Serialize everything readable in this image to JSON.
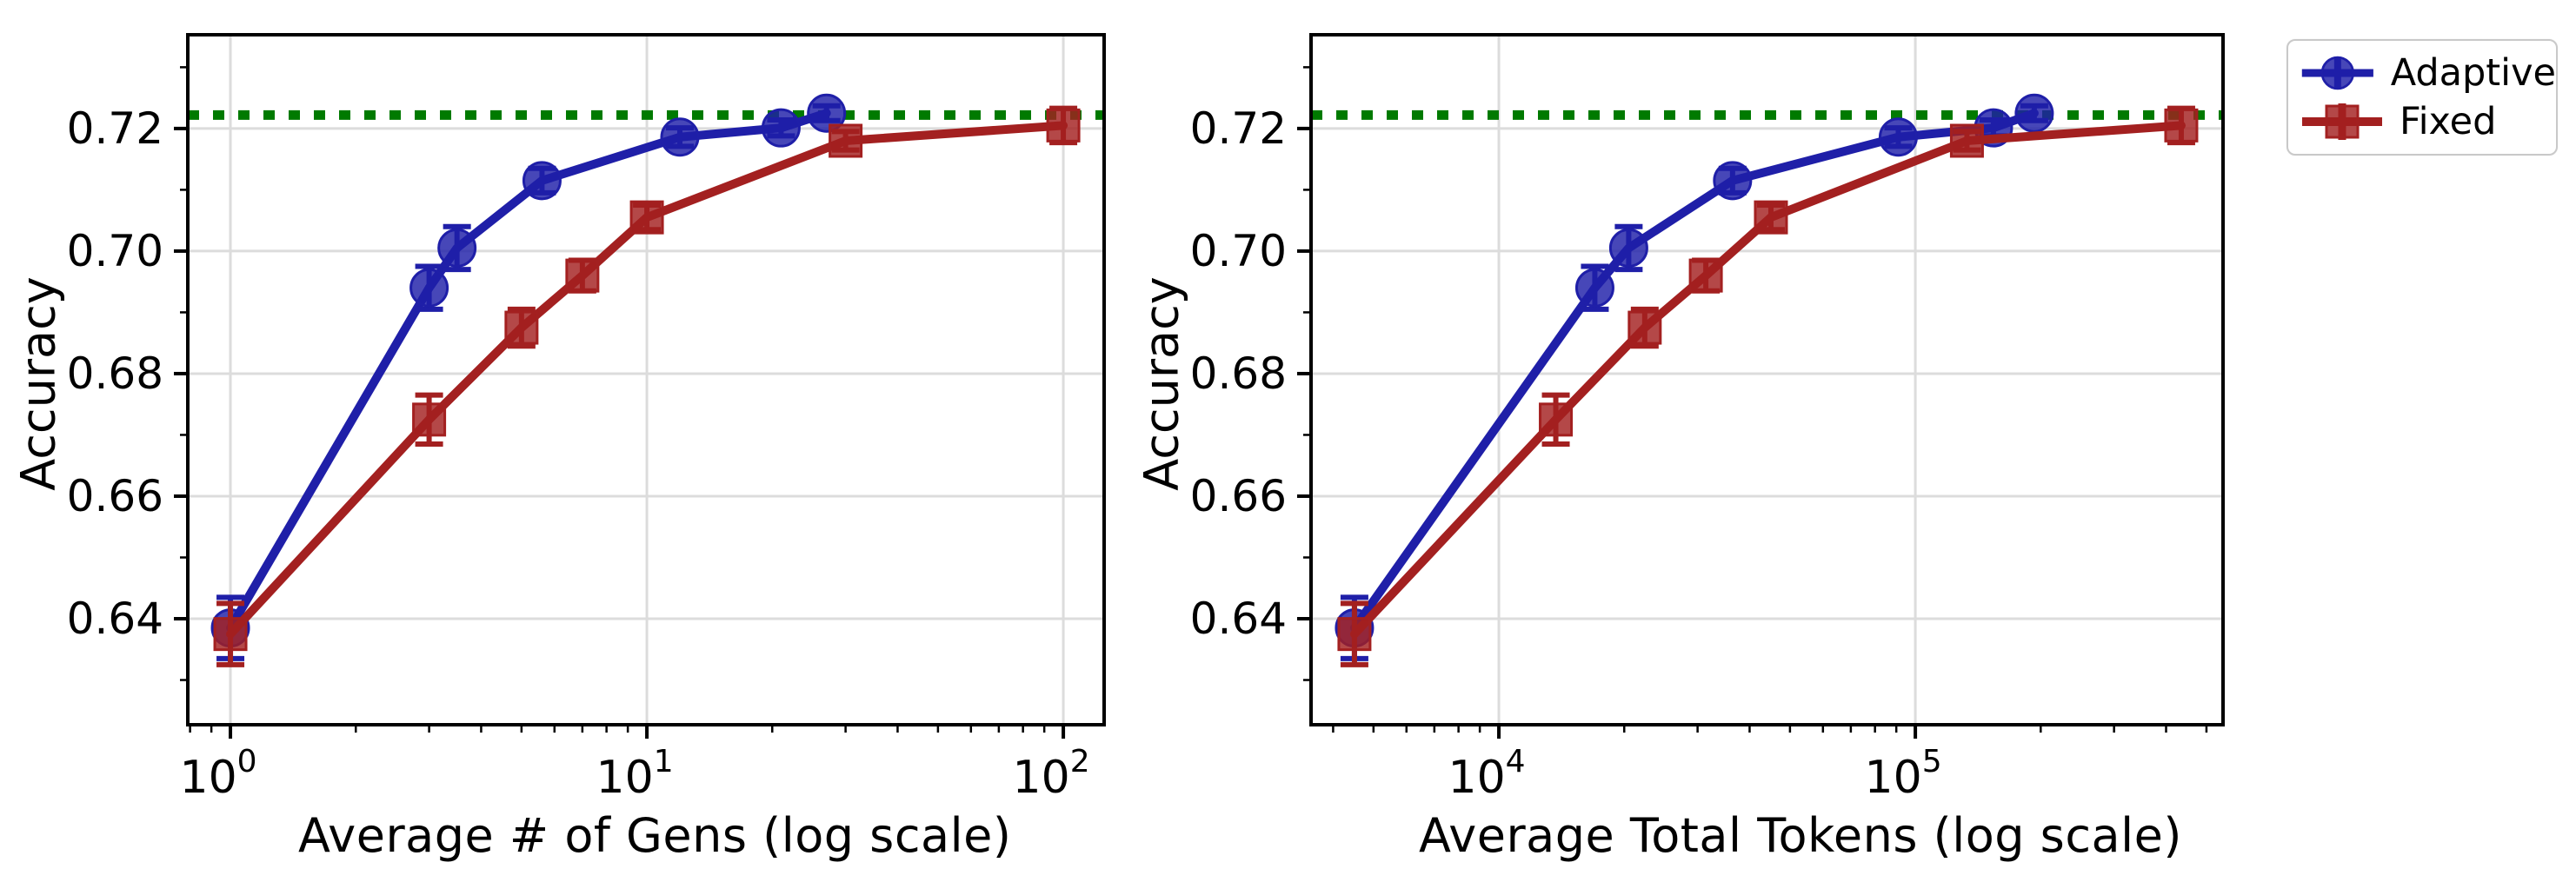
{
  "figure": {
    "background": "#ffffff",
    "accent_colors": {
      "adaptive": "#1f1fa8",
      "fixed": "#a32020",
      "baseline": "#007a00",
      "grid": "#dcdcdc",
      "spine": "#000000"
    }
  },
  "legend": {
    "items": [
      {
        "label": "Adaptive",
        "marker": "circle",
        "color": "#1f1fa8"
      },
      {
        "label": "Fixed",
        "marker": "square",
        "color": "#a32020"
      }
    ]
  },
  "chart_data": [
    {
      "type": "line",
      "title": "",
      "xlabel": "Average # of Gens (log scale)",
      "ylabel": "Accuracy",
      "x_scale": "log",
      "xlim": [
        0.79,
        125.3
      ],
      "ylim": [
        0.6227,
        0.7353
      ],
      "grid": true,
      "x_ticks": [
        {
          "value": 1,
          "base": "10",
          "exp": "0"
        },
        {
          "value": 10,
          "base": "10",
          "exp": "1"
        },
        {
          "value": 100,
          "base": "10",
          "exp": "2"
        }
      ],
      "y_ticks": [
        {
          "value": 0.64,
          "label": "0.64"
        },
        {
          "value": 0.66,
          "label": "0.66"
        },
        {
          "value": 0.68,
          "label": "0.68"
        },
        {
          "value": 0.7,
          "label": "0.70"
        },
        {
          "value": 0.72,
          "label": "0.72"
        }
      ],
      "baseline": {
        "value": 0.7222,
        "style": "dotted",
        "color": "#007a00"
      },
      "series": [
        {
          "name": "Adaptive",
          "marker": "circle",
          "color": "#1f1fa8",
          "x": [
            1,
            3,
            3.5,
            5.6,
            12,
            21,
            27
          ],
          "y": [
            0.6385,
            0.694,
            0.7005,
            0.7115,
            0.7186,
            0.7201,
            0.7225
          ],
          "yerr": [
            0.005,
            0.0035,
            0.0035,
            0.002,
            0.0015,
            0.0013,
            0.0012
          ]
        },
        {
          "name": "Fixed",
          "marker": "square",
          "color": "#a32020",
          "x": [
            1,
            3,
            5,
            7,
            10,
            30,
            100
          ],
          "y": [
            0.6375,
            0.6725,
            0.6875,
            0.696,
            0.7055,
            0.718,
            0.7205
          ],
          "yerr": [
            0.005,
            0.004,
            0.003,
            0.0025,
            0.002,
            0.0015,
            0.0028
          ]
        }
      ]
    },
    {
      "type": "line",
      "title": "",
      "xlabel": "Average Total Tokens (log scale)",
      "ylabel": "Accuracy",
      "x_scale": "log",
      "xlim": [
        3540,
        548000
      ],
      "ylim": [
        0.6227,
        0.7353
      ],
      "grid": true,
      "x_ticks": [
        {
          "value": 10000,
          "base": "10",
          "exp": "4"
        },
        {
          "value": 100000,
          "base": "10",
          "exp": "5"
        }
      ],
      "y_ticks": [
        {
          "value": 0.64,
          "label": "0.64"
        },
        {
          "value": 0.66,
          "label": "0.66"
        },
        {
          "value": 0.68,
          "label": "0.68"
        },
        {
          "value": 0.7,
          "label": "0.70"
        },
        {
          "value": 0.72,
          "label": "0.72"
        }
      ],
      "baseline": {
        "value": 0.7222,
        "style": "dotted",
        "color": "#007a00"
      },
      "series": [
        {
          "name": "Adaptive",
          "marker": "circle",
          "color": "#1f1fa8",
          "x": [
            4500,
            17000,
            20500,
            36400,
            91000,
            154000,
            193000
          ],
          "y": [
            0.6385,
            0.694,
            0.7005,
            0.7115,
            0.7186,
            0.7201,
            0.7225
          ],
          "yerr": [
            0.005,
            0.0035,
            0.0035,
            0.002,
            0.0015,
            0.0013,
            0.0012
          ]
        },
        {
          "name": "Fixed",
          "marker": "square",
          "color": "#a32020",
          "x": [
            4500,
            13700,
            22400,
            31400,
            45000,
            133000,
            435000
          ],
          "y": [
            0.6375,
            0.6725,
            0.6875,
            0.696,
            0.7055,
            0.718,
            0.7205
          ],
          "yerr": [
            0.005,
            0.004,
            0.003,
            0.0025,
            0.002,
            0.0015,
            0.0028
          ]
        }
      ]
    }
  ]
}
